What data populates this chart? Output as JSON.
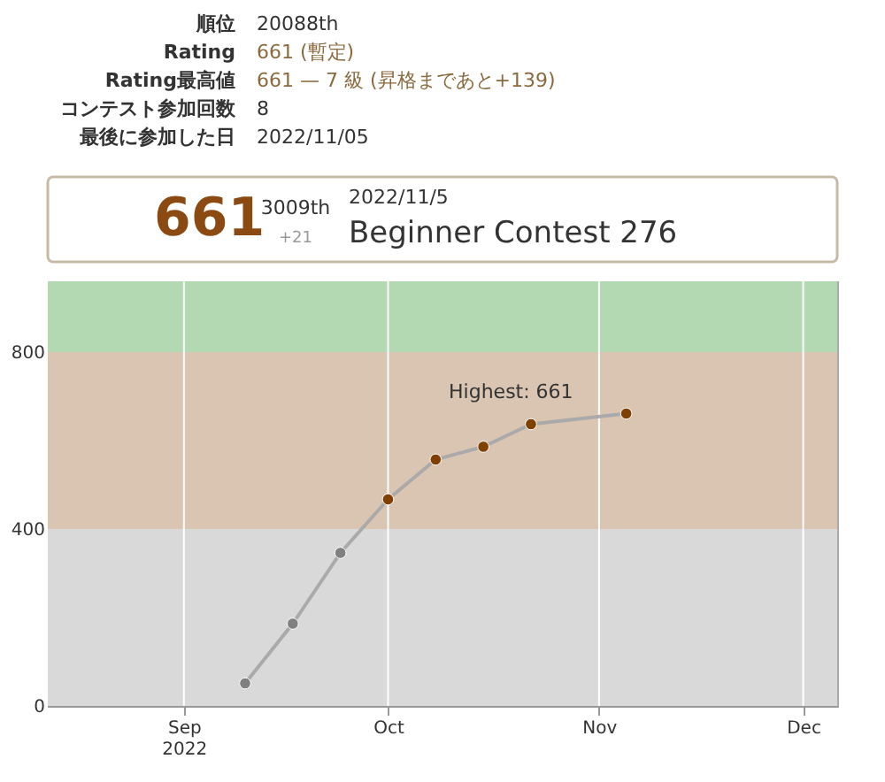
{
  "chart_data": {
    "type": "line",
    "annotations": [
      "順位",
      "20088th",
      "Rating",
      "661 (暫定)",
      "Rating最高値",
      "661 — 7 級 (昇格まであと+139)",
      "コンテスト参加回数",
      "8",
      "最後に参加した日",
      "2022/11/05",
      "661",
      "3009th",
      "+21",
      "2022/11/5",
      "Beginner Contest 276",
      {
        "text": "Highest: 661",
        "x": "2022-11-05",
        "y": 661
      }
    ],
    "x": [
      "2022-09-10",
      "2022-09-17",
      "2022-09-24",
      "2022-10-01",
      "2022-10-08",
      "2022-10-15",
      "2022-10-22",
      "2022-11-05"
    ],
    "series": [
      {
        "color": "#aaaaaa",
        "values": [
          51,
          186,
          346,
          467,
          557,
          586,
          637,
          661
        ],
        "colors": [
          "#808080",
          "#808080",
          "#808080",
          "#804000",
          "#804000",
          "#804000",
          "#804000",
          "#804000"
        ]
      }
    ],
    "marker": "circle",
    "xlim": [
      "2022-08-12",
      "2022-12-06"
    ],
    "xticks": [
      {
        "value": "2022-09-01",
        "label": "Sep 2022"
      },
      {
        "value": "2022-10-01",
        "label": "Oct"
      },
      {
        "value": "2022-11-01",
        "label": "Nov"
      },
      {
        "value": "2022-12-01",
        "label": "Dec"
      }
    ],
    "ylim": [
      0,
      960
    ],
    "yticks": [
      0,
      400,
      800
    ],
    "bands": [
      {
        "axis": "y",
        "from": 0,
        "to": 400,
        "color": "#d9d9d9"
      },
      {
        "axis": "y",
        "from": 400,
        "to": 800,
        "color": "#d9c5b2"
      },
      {
        "axis": "y",
        "from": 800,
        "to": 960,
        "color": "#b2d9b2"
      }
    ],
    "grid": "x"
  }
}
